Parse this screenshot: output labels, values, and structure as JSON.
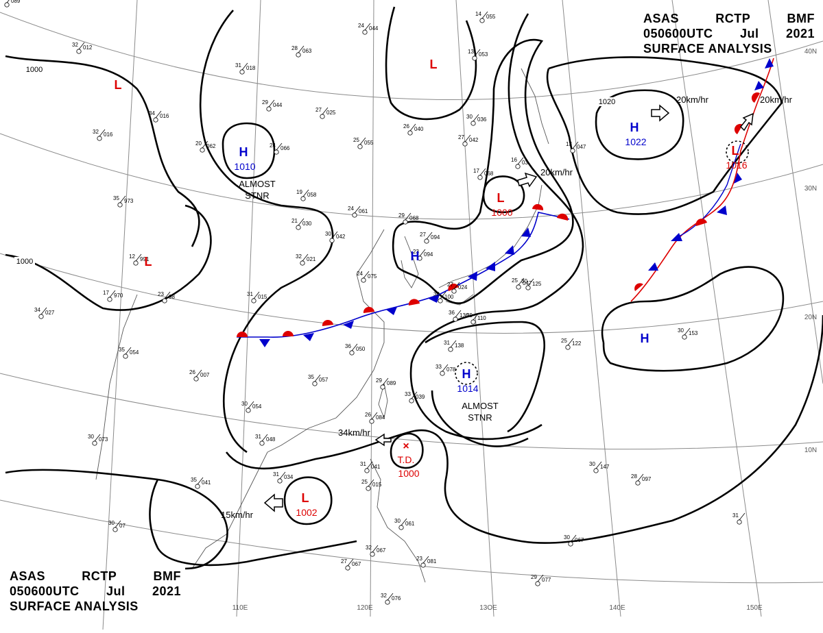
{
  "header": {
    "agency": "ASAS",
    "station": "RCTP",
    "office": "BMF",
    "datetime": "050600UTC",
    "month": "Jul",
    "year": "2021",
    "title": "SURFACE ANALYSIS"
  },
  "lat_labels": [
    "40N",
    "30N",
    "20N",
    "10N"
  ],
  "lon_labels": [
    "110E",
    "120E",
    "13OE",
    "140E",
    "150E"
  ],
  "isobar_labels": [
    "1000",
    "1000",
    "1020"
  ],
  "pressure_centers": [
    {
      "type": "H",
      "value": "1010",
      "note": "ALMOST STNR"
    },
    {
      "type": "H",
      "value": "1022"
    },
    {
      "type": "H",
      "value": ""
    },
    {
      "type": "H",
      "value": ""
    },
    {
      "type": "H",
      "value": "1014",
      "note": "ALMOST STNR"
    },
    {
      "type": "L",
      "value": ""
    },
    {
      "type": "L",
      "value": ""
    },
    {
      "type": "L",
      "value": ""
    },
    {
      "type": "L",
      "value": "1000"
    },
    {
      "type": "L",
      "value": "1016"
    },
    {
      "type": "L",
      "value": "1002"
    },
    {
      "type": "TD",
      "value": "1000",
      "label": "T.D."
    }
  ],
  "motions": [
    "20km/hr",
    "20km/hr",
    "20km/hr",
    "34km/hr",
    "15km/hr"
  ],
  "colors": {
    "high": "#0000cc",
    "low": "#dd0000",
    "isobar": "#000000",
    "grid": "#888888",
    "coast": "#555555"
  },
  "stations": [
    [
      "32",
      "012"
    ],
    [
      "34",
      "016"
    ],
    [
      "32",
      "016"
    ],
    [
      "35",
      "973"
    ],
    [
      "12",
      "991"
    ],
    [
      "17",
      "970"
    ],
    [
      "23",
      "98"
    ],
    [
      "34",
      "027"
    ],
    [
      "35",
      "054"
    ],
    [
      "26",
      "007"
    ],
    [
      "30",
      "073"
    ],
    [
      "35",
      "041"
    ],
    [
      "30",
      "07"
    ],
    [
      "31",
      "018"
    ],
    [
      "28",
      "063"
    ],
    [
      "24",
      "044"
    ],
    [
      "29",
      "044"
    ],
    [
      "27",
      "025"
    ],
    [
      "25",
      "055"
    ],
    [
      "26",
      "040"
    ],
    [
      "27",
      "042"
    ],
    [
      "13",
      "053"
    ],
    [
      "14",
      "055"
    ],
    [
      "30",
      "036"
    ],
    [
      "20",
      "062"
    ],
    [
      "24",
      "066"
    ],
    [
      "19",
      "058"
    ],
    [
      "21",
      "030"
    ],
    [
      "24",
      "061"
    ],
    [
      "29",
      "068"
    ],
    [
      "30",
      "042"
    ],
    [
      "32",
      "021"
    ],
    [
      "24",
      "075"
    ],
    [
      "27",
      "094"
    ],
    [
      "23",
      "094"
    ],
    [
      "31",
      "015"
    ],
    [
      "27",
      "024"
    ],
    [
      "36",
      "050"
    ],
    [
      "35",
      "057"
    ],
    [
      "29",
      "089"
    ],
    [
      "33",
      "039"
    ],
    [
      "26",
      "084"
    ],
    [
      "31",
      "048"
    ],
    [
      "30",
      "054"
    ],
    [
      "31",
      "034"
    ],
    [
      "31",
      "041"
    ],
    [
      "25",
      "015"
    ],
    [
      "30",
      "061"
    ],
    [
      "32",
      "067"
    ],
    [
      "27",
      "067"
    ],
    [
      "23",
      "081"
    ],
    [
      "32",
      "076"
    ],
    [
      "29",
      "077"
    ],
    [
      "17",
      "068"
    ],
    [
      "16",
      "03"
    ],
    [
      "13",
      "047"
    ],
    [
      "25",
      "047"
    ],
    [
      "30",
      "125"
    ],
    [
      "25",
      "122"
    ],
    [
      "30",
      "153"
    ],
    [
      "30",
      "147"
    ],
    [
      "28",
      "097"
    ],
    [
      "31",
      ""
    ],
    [
      "30",
      "067"
    ],
    [
      "33",
      "078"
    ],
    [
      "31",
      "138"
    ],
    [
      "36",
      "136"
    ],
    [
      "30",
      "100"
    ],
    [
      "29",
      "110"
    ],
    [
      "21",
      "089"
    ]
  ]
}
